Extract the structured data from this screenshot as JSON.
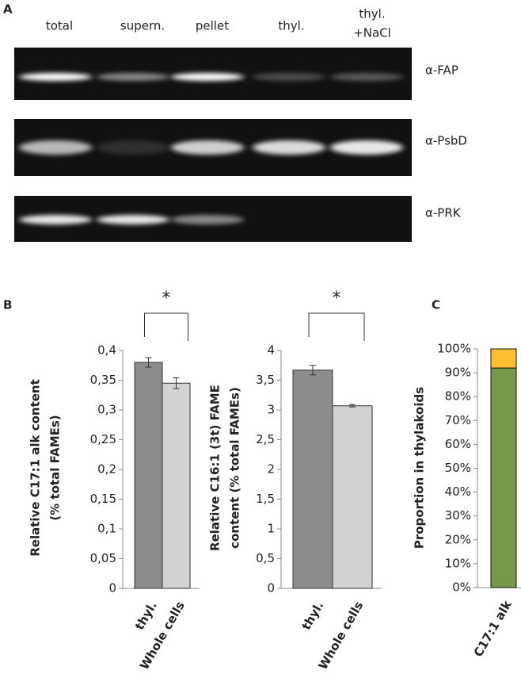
{
  "panels": {
    "a": "A",
    "b": "B",
    "c": "C"
  },
  "blot": {
    "lanes": [
      "total",
      "supern.",
      "pellet",
      "thyl.",
      [
        "thyl.",
        "+NaCl"
      ]
    ],
    "antibodies": [
      "α-FAP",
      "α-PsbD",
      "α-PRK"
    ]
  },
  "chart_data": [
    {
      "type": "bar",
      "ylabel": [
        "Relative C17:1 alk content",
        "(% total FAMEs)"
      ],
      "categories": [
        "thyl.",
        "Whole cells"
      ],
      "values": [
        0.38,
        0.345
      ],
      "errors": [
        0.008,
        0.009
      ],
      "colors": [
        "#8c8c8c",
        "#d2d2d2"
      ],
      "ylim": [
        0,
        0.4
      ],
      "yticks": [
        0,
        {
          "value": 0.05,
          "label": "0,05"
        },
        {
          "value": 0.1,
          "label": "0,1"
        },
        {
          "value": 0.15,
          "label": "0,15"
        },
        {
          "value": 0.2,
          "label": "0,2"
        },
        {
          "value": 0.25,
          "label": "0,25"
        },
        {
          "value": 0.3,
          "label": "0,3"
        },
        {
          "value": 0.35,
          "label": "0,35"
        },
        {
          "value": 0.4,
          "label": "0,4"
        }
      ],
      "annotation": "*"
    },
    {
      "type": "bar",
      "ylabel": [
        "Relative C16:1 (3t) FAME",
        "content  (% total FAMEs)"
      ],
      "categories": [
        "thyl.",
        "Whole cells"
      ],
      "values": [
        3.67,
        3.07
      ],
      "errors": [
        0.08,
        0.02
      ],
      "colors": [
        "#8c8c8c",
        "#d2d2d2"
      ],
      "ylim": [
        0,
        4
      ],
      "yticks": [
        0,
        {
          "value": 0.5,
          "label": "0,5"
        },
        1,
        {
          "value": 1.5,
          "label": "1,5"
        },
        2,
        {
          "value": 2.5,
          "label": "2,5"
        },
        3,
        {
          "value": 3.5,
          "label": "3,5"
        },
        4
      ],
      "annotation": "*"
    },
    {
      "type": "stacked_bar",
      "ylabel": [
        "Proportion in thylakoids"
      ],
      "categories": [
        "C17:1 alk"
      ],
      "series": [
        {
          "color": "#77984b",
          "values": [
            92
          ]
        },
        {
          "color": "#fbbd32",
          "values": [
            8
          ]
        }
      ],
      "ylim": [
        0,
        100
      ],
      "yticks": [
        {
          "value": 0,
          "label": "0%"
        },
        {
          "value": 10,
          "label": "10%"
        },
        {
          "value": 20,
          "label": "20%"
        },
        {
          "value": 30,
          "label": "30%"
        },
        {
          "value": 40,
          "label": "40%"
        },
        {
          "value": 50,
          "label": "50%"
        },
        {
          "value": 60,
          "label": "60%"
        },
        {
          "value": 70,
          "label": "70%"
        },
        {
          "value": 80,
          "label": "80%"
        },
        {
          "value": 90,
          "label": "90%"
        },
        {
          "value": 100,
          "label": "100%"
        }
      ]
    }
  ]
}
